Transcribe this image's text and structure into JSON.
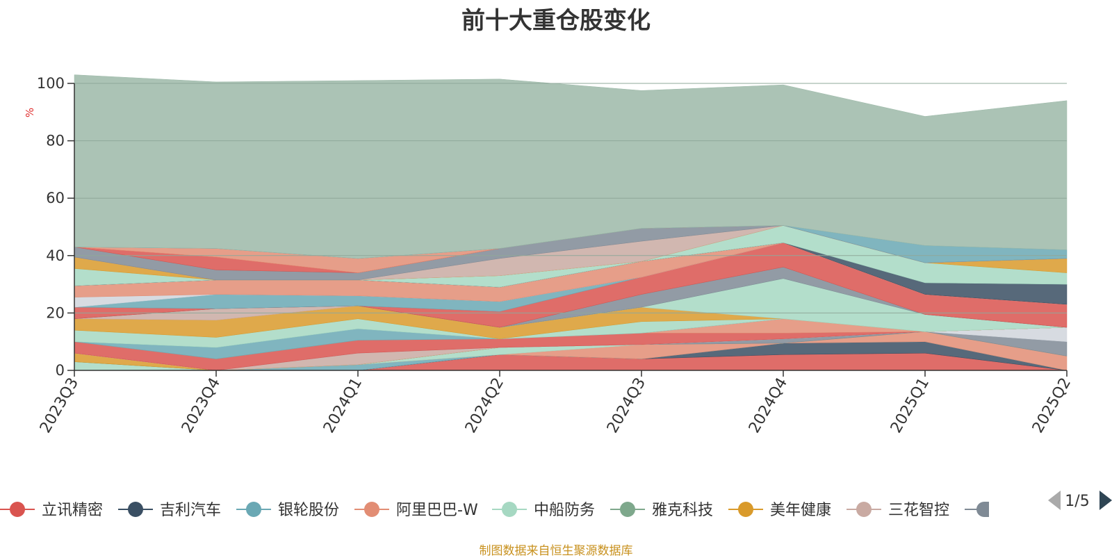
{
  "source_note": "制图数据来自恒生聚源数据库",
  "legend_page": "1/5",
  "colors": {
    "axis": "#333333",
    "grid": "#8fa89a",
    "unit": "#e03030",
    "pager_active": "#2f4554",
    "pager_inactive": "#aaaaaa"
  },
  "chart_data": {
    "type": "area",
    "stacked": true,
    "title": "前十大重仓股变化",
    "ylabel": "%",
    "ylim": [
      0,
      100
    ],
    "yticks": [
      0,
      20,
      40,
      60,
      80,
      100
    ],
    "grid": true,
    "legend_position": "bottom",
    "categories": [
      "2023Q3",
      "2023Q4",
      "2024Q1",
      "2024Q2",
      "2024Q3",
      "2024Q4",
      "2025Q1",
      "2025Q2"
    ],
    "series": [
      {
        "name": "立讯精密",
        "color": "#d9544f",
        "values": [
          0,
          0,
          0,
          5.5,
          4,
          5.5,
          6,
          0
        ]
      },
      {
        "name": "吉利汽车",
        "color": "#3a4f63",
        "values": [
          0,
          0,
          0,
          0,
          0,
          4,
          4,
          0
        ]
      },
      {
        "name": "银轮股份",
        "color": "#6aa8b4",
        "values": [
          0,
          0,
          2,
          0,
          0,
          0,
          0,
          0
        ]
      },
      {
        "name": "阿里巴巴-W",
        "color": "#e28d74",
        "values": [
          0,
          0,
          0,
          0,
          5,
          0,
          3.5,
          5
        ]
      },
      {
        "name": "中船防务",
        "color": "#a6d8c2",
        "values": [
          3,
          0,
          0,
          2.5,
          0,
          0,
          0,
          0
        ]
      },
      {
        "name": "雅克科技",
        "color": "#7ea88c",
        "values": [
          0,
          0,
          0,
          0,
          0,
          0,
          0,
          0
        ]
      },
      {
        "name": "美年健康",
        "color": "#d99a2b",
        "values": [
          3,
          0,
          0,
          0,
          0,
          0,
          0,
          0
        ]
      },
      {
        "name": "三花智控",
        "color": "#c9aaa2",
        "values": [
          0,
          0,
          4,
          0,
          0,
          0,
          0,
          0
        ]
      },
      {
        "name": "",
        "color": "#7f8a95",
        "values": [
          0,
          0,
          0,
          0,
          0,
          1.5,
          0,
          5
        ]
      },
      {
        "name": "",
        "color": "#d0d5dc",
        "values": [
          0,
          0,
          0,
          0,
          0,
          0,
          0,
          5
        ]
      },
      {
        "name": "",
        "color": "#d9544f",
        "values": [
          4,
          4,
          4.5,
          3,
          4,
          2,
          0,
          0
        ]
      },
      {
        "name": "",
        "color": "#e28d74",
        "values": [
          0,
          0,
          0,
          0,
          0,
          5,
          0,
          0
        ]
      },
      {
        "name": "",
        "color": "#6aa8b4",
        "values": [
          0,
          4,
          4,
          0,
          0,
          0,
          0,
          0
        ]
      },
      {
        "name": "",
        "color": "#a6d8c2",
        "values": [
          4,
          3.5,
          3.5,
          0,
          4,
          0,
          0,
          0
        ]
      },
      {
        "name": "",
        "color": "#d99a2b",
        "values": [
          4,
          6,
          4.5,
          4,
          5,
          0,
          0,
          0
        ]
      },
      {
        "name": "",
        "color": "#c9aaa2",
        "values": [
          0,
          4,
          0,
          0,
          0,
          0,
          0,
          0
        ]
      },
      {
        "name": "",
        "color": "#a6d8c2",
        "values": [
          0,
          0,
          0,
          0,
          0,
          14,
          6,
          0
        ]
      },
      {
        "name": "",
        "color": "#7f8a95",
        "values": [
          0,
          0,
          0,
          0,
          4.5,
          4,
          0,
          0
        ]
      },
      {
        "name": "",
        "color": "#d9544f",
        "values": [
          4,
          0,
          0,
          5.5,
          6,
          8.5,
          7,
          8
        ]
      },
      {
        "name": "",
        "color": "#6aa8b4",
        "values": [
          0,
          5,
          3.5,
          3.5,
          0,
          0,
          0,
          0
        ]
      },
      {
        "name": "",
        "color": "#d0d5dc",
        "values": [
          3.5,
          0,
          0,
          0,
          0,
          0,
          0,
          0
        ]
      },
      {
        "name": "",
        "color": "#e28d74",
        "values": [
          4,
          5,
          5.5,
          5,
          5.5,
          0,
          0,
          0
        ]
      },
      {
        "name": "",
        "color": "#3a4f63",
        "values": [
          0,
          0,
          0,
          0,
          0,
          0,
          4,
          7
        ]
      },
      {
        "name": "",
        "color": "#a6d8c2",
        "values": [
          6,
          0,
          0,
          4,
          0,
          6,
          7,
          4
        ]
      },
      {
        "name": "",
        "color": "#d99a2b",
        "values": [
          4,
          0,
          0,
          0,
          0,
          0,
          0,
          5
        ]
      },
      {
        "name": "",
        "color": "#c9aaa2",
        "values": [
          0,
          0,
          0,
          6,
          7,
          0,
          0,
          0
        ]
      },
      {
        "name": "",
        "color": "#7f8a95",
        "values": [
          3.5,
          3.5,
          2.5,
          3.5,
          4.5,
          0,
          0,
          0
        ]
      },
      {
        "name": "",
        "color": "#d9544f",
        "values": [
          0,
          4.5,
          0,
          0,
          0,
          0,
          0,
          0
        ]
      },
      {
        "name": "",
        "color": "#e28d74",
        "values": [
          0,
          3,
          5,
          0,
          0,
          0,
          0,
          0
        ]
      },
      {
        "name": "",
        "color": "#6aa8b4",
        "values": [
          0,
          0,
          0,
          0,
          0,
          0,
          6,
          3
        ]
      },
      {
        "name": "",
        "color": "#9cb9a8",
        "values": [
          60,
          58,
          62,
          59,
          48,
          49,
          45,
          52
        ]
      }
    ]
  }
}
